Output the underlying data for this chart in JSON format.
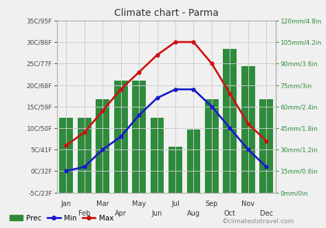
{
  "title": "Climate chart - Parma",
  "months": [
    "Jan",
    "Feb",
    "Mar",
    "Apr",
    "May",
    "Jun",
    "Jul",
    "Aug",
    "Sep",
    "Oct",
    "Nov",
    "Dec"
  ],
  "prec": [
    52,
    52,
    65,
    78,
    78,
    52,
    32,
    44,
    65,
    100,
    88,
    65
  ],
  "temp_min": [
    0,
    1,
    5,
    8,
    13,
    17,
    19,
    19,
    15,
    10,
    5,
    1
  ],
  "temp_max": [
    6,
    9,
    14,
    19,
    23,
    27,
    30,
    30,
    25,
    18,
    11,
    7
  ],
  "bar_color": "#2e8b3c",
  "line_min_color": "#1a1acd",
  "line_max_color": "#cc1111",
  "bg_color": "#f0f0f0",
  "grid_color": "#cccccc",
  "left_axis_color": "#444444",
  "right_axis_color": "#2e8b3c",
  "title_color": "#333333",
  "temp_left_labels": [
    "-5C/23F",
    "0C/32F",
    "5C/41F",
    "10C/50F",
    "15C/59F",
    "20C/68F",
    "25C/77F",
    "30C/86F",
    "35C/95F"
  ],
  "temp_left_values": [
    -5,
    0,
    5,
    10,
    15,
    20,
    25,
    30,
    35
  ],
  "prec_right_labels": [
    "0mm/0in",
    "15mm/0.6in",
    "30mm/1.2in",
    "45mm/1.8in",
    "60mm/2.4in",
    "75mm/3in",
    "90mm/3.6in",
    "105mm/4.2in",
    "120mm/4.8in"
  ],
  "prec_right_values": [
    0,
    15,
    30,
    45,
    60,
    75,
    90,
    105,
    120
  ],
  "ylim_temp": [
    -5,
    35
  ],
  "ylim_prec": [
    0,
    120
  ],
  "watermark": "©climatestotravel.com",
  "legend_prec": "Prec",
  "legend_min": "Min",
  "legend_max": "Max"
}
